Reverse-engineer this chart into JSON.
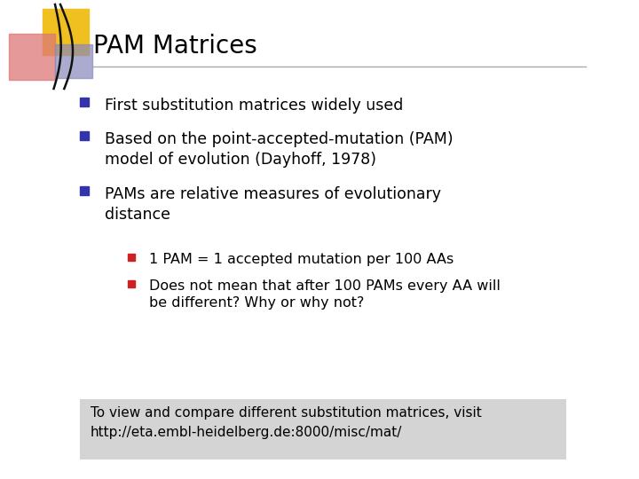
{
  "title": "PAM Matrices",
  "title_fontsize": 20,
  "title_color": "#000000",
  "background_color": "#ffffff",
  "line_color": "#888888",
  "bullet_color": "#3333aa",
  "sub_bullet_color": "#cc2222",
  "bullet_points": [
    "First substitution matrices widely used",
    "Based on the point-accepted-mutation (PAM)\nmodel of evolution (Dayhoff, 1978)",
    "PAMs are relative measures of evolutionary\ndistance"
  ],
  "sub_bullet_points": [
    "1 PAM = 1 accepted mutation per 100 AAs",
    "Does not mean that after 100 PAMs every AA will\nbe different? Why or why not?"
  ],
  "footer_bg": "#d4d4d4",
  "footer_text": "To view and compare different substitution matrices, visit\nhttp://eta.embl-heidelberg.de:8000/misc/mat/",
  "footer_fontsize": 11,
  "body_fontsize": 12.5,
  "sub_fontsize": 11.5,
  "logo_yellow": "#f0c020",
  "logo_red": "#dd7777",
  "logo_blue": "#8888bb"
}
